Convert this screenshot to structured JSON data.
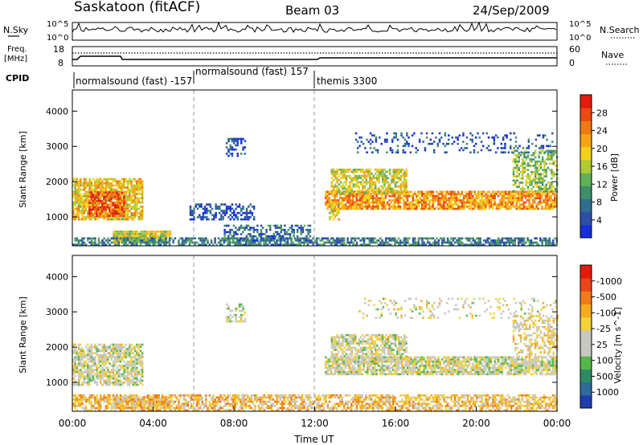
{
  "header": {
    "station": "Saskatoon (fitACF)",
    "beam": "Beam 03",
    "date": "24/Sep/2009"
  },
  "top_panels": {
    "nsky_label": "N.Sky",
    "nsky_ticks": [
      "10^5",
      "10^0"
    ],
    "nsearch_label": "N.Search",
    "freq_label_line1": "Freq.",
    "freq_label_line2": "[MHz]",
    "freq_ticks": [
      "18",
      "8"
    ],
    "nave_label": "Nave",
    "nave_ticks": [
      "60",
      "0"
    ],
    "cpid_label": "CPID"
  },
  "cpid_segments": [
    {
      "label": "normalsound (fast) -157",
      "start_hour": 0.0
    },
    {
      "label": "normalsound (fast) 157",
      "start_hour": 6.0
    },
    {
      "label": "themis 3300",
      "start_hour": 12.0
    }
  ],
  "chart_data": [
    {
      "type": "heatmap",
      "title": "Power",
      "xlabel": "",
      "ylabel": "Slant Range [km]",
      "xlim": [
        0,
        24
      ],
      "ylim": [
        180,
        4600
      ],
      "y_ticks": [
        "1000",
        "2000",
        "3000",
        "4000"
      ],
      "colorbar_label": "Power [dB]",
      "colorbar_ticks": [
        "4",
        "8",
        "12",
        "16",
        "20",
        "24",
        "28"
      ],
      "colorbar_colors": [
        "#1530d8",
        "#2e4fa8",
        "#2f6e8e",
        "#3f8f6a",
        "#60b05a",
        "#b0cc32",
        "#f2d21b",
        "#f6a416",
        "#f07a12",
        "#ec4a10",
        "#e21b0c"
      ],
      "regions": [
        {
          "t0": 0.0,
          "t1": 3.5,
          "r0": 900,
          "r1": 2100,
          "level": 0.62,
          "density": 0.8
        },
        {
          "t0": 0.8,
          "t1": 2.6,
          "r0": 1000,
          "r1": 1700,
          "level": 0.85,
          "density": 0.75
        },
        {
          "t0": 2.0,
          "t1": 4.8,
          "r0": 250,
          "r1": 600,
          "level": 0.55,
          "density": 0.9
        },
        {
          "t0": 0.0,
          "t1": 24.0,
          "r0": 180,
          "r1": 420,
          "level": 0.25,
          "density": 0.7
        },
        {
          "t0": 5.8,
          "t1": 9.0,
          "r0": 900,
          "r1": 1350,
          "level": 0.12,
          "density": 0.45
        },
        {
          "t0": 7.5,
          "t1": 11.8,
          "r0": 300,
          "r1": 750,
          "level": 0.2,
          "density": 0.5
        },
        {
          "t0": 7.6,
          "t1": 8.5,
          "r0": 2700,
          "r1": 3200,
          "level": 0.15,
          "density": 0.45
        },
        {
          "t0": 12.5,
          "t1": 24.0,
          "r0": 1200,
          "r1": 1700,
          "level": 0.72,
          "density": 0.8
        },
        {
          "t0": 12.8,
          "t1": 16.5,
          "r0": 1650,
          "r1": 2350,
          "level": 0.55,
          "density": 0.7
        },
        {
          "t0": 12.7,
          "t1": 13.2,
          "r0": 900,
          "r1": 1400,
          "level": 0.6,
          "density": 0.6
        },
        {
          "t0": 14.0,
          "t1": 24.0,
          "r0": 2800,
          "r1": 3400,
          "level": 0.15,
          "density": 0.18
        },
        {
          "t0": 21.8,
          "t1": 24.0,
          "r0": 1700,
          "r1": 2900,
          "level": 0.45,
          "density": 0.5
        }
      ]
    },
    {
      "type": "heatmap",
      "title": "Velocity",
      "xlabel": "Time UT",
      "ylabel": "Slant Range [km]",
      "xlim": [
        0,
        24
      ],
      "ylim": [
        180,
        4600
      ],
      "x_ticks": [
        "00:00",
        "04:00",
        "08:00",
        "12:00",
        "16:00",
        "20:00",
        "00:00"
      ],
      "y_ticks": [
        "1000",
        "2000",
        "3000",
        "4000"
      ],
      "colorbar_label": "Velocity [m s^-1]",
      "colorbar_ticks": [
        "1000",
        "500",
        "100",
        "25",
        "-25",
        "-100",
        "-500",
        "-1000"
      ],
      "colorbar_colors": [
        "#1f3fae",
        "#2f6a9a",
        "#2e8a62",
        "#56b84a",
        "#c8c8c0",
        "#c8c8c0",
        "#f3d23b",
        "#f6aa1e",
        "#f07c18",
        "#e9461a",
        "#e21b0c"
      ],
      "regions": [
        {
          "t0": 0.0,
          "t1": 3.5,
          "r0": 900,
          "r1": 2100,
          "level": 0.48,
          "density": 0.75
        },
        {
          "t0": 2.0,
          "t1": 4.8,
          "r0": 250,
          "r1": 600,
          "level": 0.62,
          "density": 0.8
        },
        {
          "t0": 0.0,
          "t1": 24.0,
          "r0": 180,
          "r1": 650,
          "level": 0.62,
          "density": 0.65
        },
        {
          "t0": 12.5,
          "t1": 24.0,
          "r0": 1200,
          "r1": 1700,
          "level": 0.48,
          "density": 0.8
        },
        {
          "t0": 12.8,
          "t1": 16.5,
          "r0": 1650,
          "r1": 2350,
          "level": 0.48,
          "density": 0.7
        },
        {
          "t0": 14.0,
          "t1": 24.0,
          "r0": 2800,
          "r1": 3400,
          "level": 0.5,
          "density": 0.16
        },
        {
          "t0": 21.8,
          "t1": 24.0,
          "r0": 1700,
          "r1": 2900,
          "level": 0.55,
          "density": 0.45
        },
        {
          "t0": 7.6,
          "t1": 8.5,
          "r0": 2700,
          "r1": 3200,
          "level": 0.48,
          "density": 0.4
        }
      ]
    }
  ]
}
